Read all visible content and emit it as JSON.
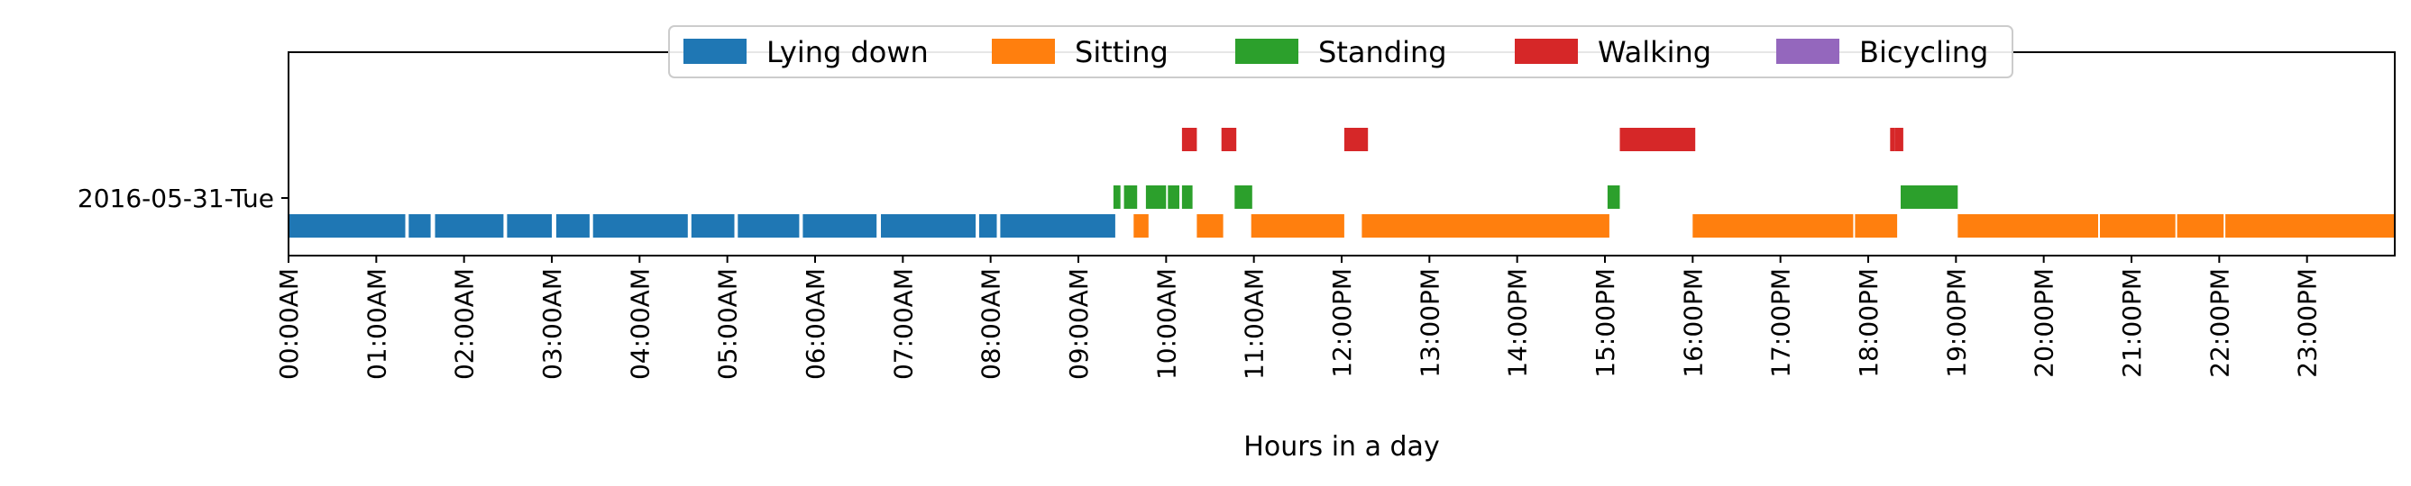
{
  "chart_data": {
    "type": "timeline",
    "xlabel": "Hours in a day",
    "x_unit": "hour of day",
    "xlim": [
      0,
      24
    ],
    "x_ticks": [
      {
        "value": 0,
        "label": "00:00AM"
      },
      {
        "value": 1,
        "label": "01:00AM"
      },
      {
        "value": 2,
        "label": "02:00AM"
      },
      {
        "value": 3,
        "label": "03:00AM"
      },
      {
        "value": 4,
        "label": "04:00AM"
      },
      {
        "value": 5,
        "label": "05:00AM"
      },
      {
        "value": 6,
        "label": "06:00AM"
      },
      {
        "value": 7,
        "label": "07:00AM"
      },
      {
        "value": 8,
        "label": "08:00AM"
      },
      {
        "value": 9,
        "label": "09:00AM"
      },
      {
        "value": 10,
        "label": "10:00AM"
      },
      {
        "value": 11,
        "label": "11:00AM"
      },
      {
        "value": 12,
        "label": "12:00PM"
      },
      {
        "value": 13,
        "label": "13:00PM"
      },
      {
        "value": 14,
        "label": "14:00PM"
      },
      {
        "value": 15,
        "label": "15:00PM"
      },
      {
        "value": 16,
        "label": "16:00PM"
      },
      {
        "value": 17,
        "label": "17:00PM"
      },
      {
        "value": 18,
        "label": "18:00PM"
      },
      {
        "value": 19,
        "label": "19:00PM"
      },
      {
        "value": 20,
        "label": "20:00PM"
      },
      {
        "value": 21,
        "label": "21:00PM"
      },
      {
        "value": 22,
        "label": "22:00PM"
      },
      {
        "value": 23,
        "label": "23:00PM"
      }
    ],
    "y_category": "2016-05-31-Tue",
    "legend_position": "top-center",
    "grid": false,
    "series": [
      {
        "name": "Lying down",
        "color": "#1f77b4",
        "level": 0,
        "intervals": [
          [
            0,
            1.33
          ],
          [
            1.37,
            1.62
          ],
          [
            1.67,
            2.45
          ],
          [
            2.49,
            3.0
          ],
          [
            3.05,
            3.43
          ],
          [
            3.47,
            4.55
          ],
          [
            4.59,
            5.08
          ],
          [
            5.12,
            5.82
          ],
          [
            5.86,
            6.7
          ],
          [
            6.75,
            7.83
          ],
          [
            7.87,
            8.07
          ],
          [
            8.11,
            9.42
          ]
        ]
      },
      {
        "name": "Sitting",
        "color": "#ff7f0e",
        "level": 0,
        "intervals": [
          [
            9.63,
            9.8
          ],
          [
            10.35,
            10.65
          ],
          [
            10.97,
            12.03
          ],
          [
            12.23,
            15.05
          ],
          [
            16.0,
            17.83
          ],
          [
            17.85,
            18.33
          ],
          [
            19.02,
            20.62
          ],
          [
            20.64,
            21.5
          ],
          [
            21.52,
            22.05
          ],
          [
            22.07,
            24.0
          ]
        ]
      },
      {
        "name": "Standing",
        "color": "#2ca02c",
        "level": 1,
        "intervals": [
          [
            9.4,
            9.48
          ],
          [
            9.52,
            9.67
          ],
          [
            9.77,
            10.0
          ],
          [
            10.02,
            10.15
          ],
          [
            10.18,
            10.3
          ],
          [
            10.78,
            10.98
          ],
          [
            15.03,
            15.17
          ],
          [
            18.37,
            19.02
          ]
        ]
      },
      {
        "name": "Walking",
        "color": "#d62728",
        "level": 2,
        "intervals": [
          [
            10.18,
            10.35
          ],
          [
            10.63,
            10.8
          ],
          [
            12.03,
            12.3
          ],
          [
            15.17,
            16.03
          ],
          [
            18.25,
            18.3
          ],
          [
            18.3,
            18.4
          ]
        ]
      },
      {
        "name": "Bicycling",
        "color": "#9467bd",
        "level": 3,
        "intervals": []
      }
    ]
  }
}
